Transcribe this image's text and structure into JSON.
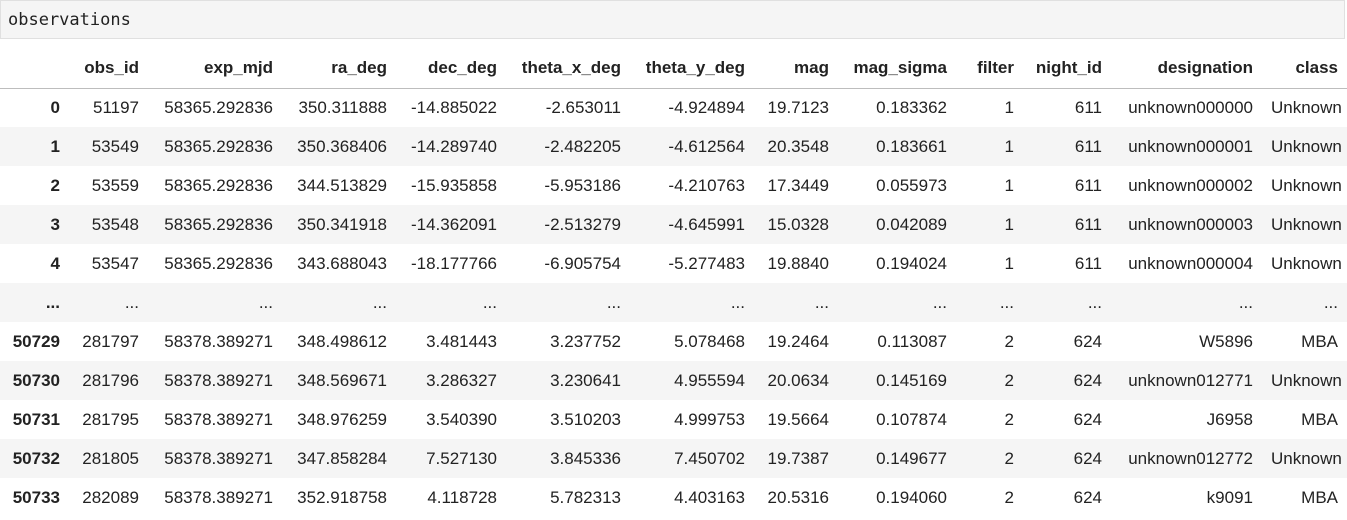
{
  "variable_name": "observations",
  "table": {
    "columns": [
      "",
      "obs_id",
      "exp_mjd",
      "ra_deg",
      "dec_deg",
      "theta_x_deg",
      "theta_y_deg",
      "mag",
      "mag_sigma",
      "filter",
      "night_id",
      "designation",
      "class"
    ],
    "rows": [
      [
        "0",
        "51197",
        "58365.292836",
        "350.311888",
        "-14.885022",
        "-2.653011",
        "-4.924894",
        "19.7123",
        "0.183362",
        "1",
        "611",
        "unknown000000",
        "Unknown"
      ],
      [
        "1",
        "53549",
        "58365.292836",
        "350.368406",
        "-14.289740",
        "-2.482205",
        "-4.612564",
        "20.3548",
        "0.183661",
        "1",
        "611",
        "unknown000001",
        "Unknown"
      ],
      [
        "2",
        "53559",
        "58365.292836",
        "344.513829",
        "-15.935858",
        "-5.953186",
        "-4.210763",
        "17.3449",
        "0.055973",
        "1",
        "611",
        "unknown000002",
        "Unknown"
      ],
      [
        "3",
        "53548",
        "58365.292836",
        "350.341918",
        "-14.362091",
        "-2.513279",
        "-4.645991",
        "15.0328",
        "0.042089",
        "1",
        "611",
        "unknown000003",
        "Unknown"
      ],
      [
        "4",
        "53547",
        "58365.292836",
        "343.688043",
        "-18.177766",
        "-6.905754",
        "-5.277483",
        "19.8840",
        "0.194024",
        "1",
        "611",
        "unknown000004",
        "Unknown"
      ],
      [
        "...",
        "...",
        "...",
        "...",
        "...",
        "...",
        "...",
        "...",
        "...",
        "...",
        "...",
        "...",
        "..."
      ],
      [
        "50729",
        "281797",
        "58378.389271",
        "348.498612",
        "3.481443",
        "3.237752",
        "5.078468",
        "19.2464",
        "0.113087",
        "2",
        "624",
        "W5896",
        "MBA"
      ],
      [
        "50730",
        "281796",
        "58378.389271",
        "348.569671",
        "3.286327",
        "3.230641",
        "4.955594",
        "20.0634",
        "0.145169",
        "2",
        "624",
        "unknown012771",
        "Unknown"
      ],
      [
        "50731",
        "281795",
        "58378.389271",
        "348.976259",
        "3.540390",
        "3.510203",
        "4.999753",
        "19.5664",
        "0.107874",
        "2",
        "624",
        "J6958",
        "MBA"
      ],
      [
        "50732",
        "281805",
        "58378.389271",
        "347.858284",
        "7.527130",
        "3.845336",
        "7.450702",
        "19.7387",
        "0.149677",
        "2",
        "624",
        "unknown012772",
        "Unknown"
      ],
      [
        "50733",
        "282089",
        "58378.389271",
        "352.918758",
        "4.118728",
        "5.782313",
        "4.403163",
        "20.5316",
        "0.194060",
        "2",
        "624",
        "k9091",
        "MBA"
      ]
    ]
  }
}
